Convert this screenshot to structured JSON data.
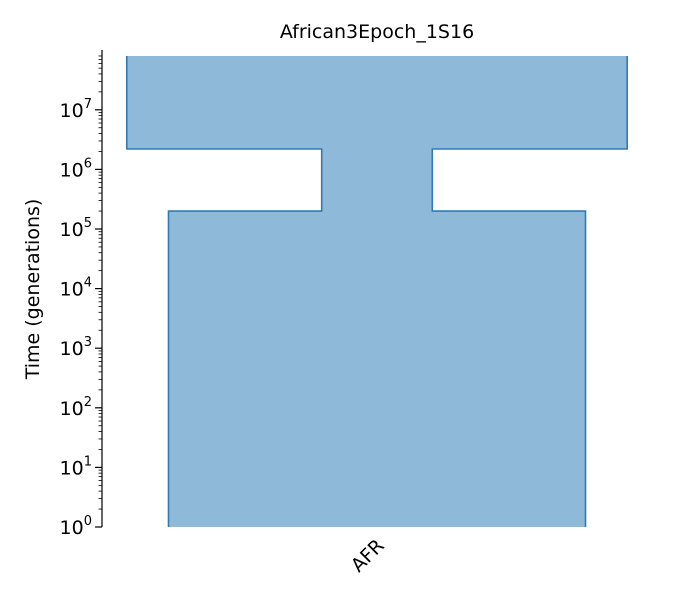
{
  "chart_data": {
    "type": "demographic-tree",
    "title": "African3Epoch_1S16",
    "ylabel": "Time (generations)",
    "yscale": "log",
    "ylim": [
      1,
      80000000
    ],
    "yticks": [
      {
        "value": 1,
        "base": "10",
        "exp": "0"
      },
      {
        "value": 10,
        "base": "10",
        "exp": "1"
      },
      {
        "value": 100,
        "base": "10",
        "exp": "2"
      },
      {
        "value": 1000,
        "base": "10",
        "exp": "3"
      },
      {
        "value": 10000,
        "base": "10",
        "exp": "4"
      },
      {
        "value": 100000,
        "base": "10",
        "exp": "5"
      },
      {
        "value": 1000000,
        "base": "10",
        "exp": "6"
      },
      {
        "value": 10000000,
        "base": "10",
        "exp": "7"
      }
    ],
    "deme": {
      "name": "AFR",
      "fill": "#8eb9d9",
      "stroke": "#2f7bb6",
      "epochs": [
        {
          "start_time": 1,
          "end_time": 200000,
          "relative_width": 1.0
        },
        {
          "start_time": 200000,
          "end_time": 2200000,
          "relative_width": 0.265
        },
        {
          "start_time": 2200000,
          "end_time": 80000000,
          "relative_width": 1.2
        }
      ]
    }
  }
}
